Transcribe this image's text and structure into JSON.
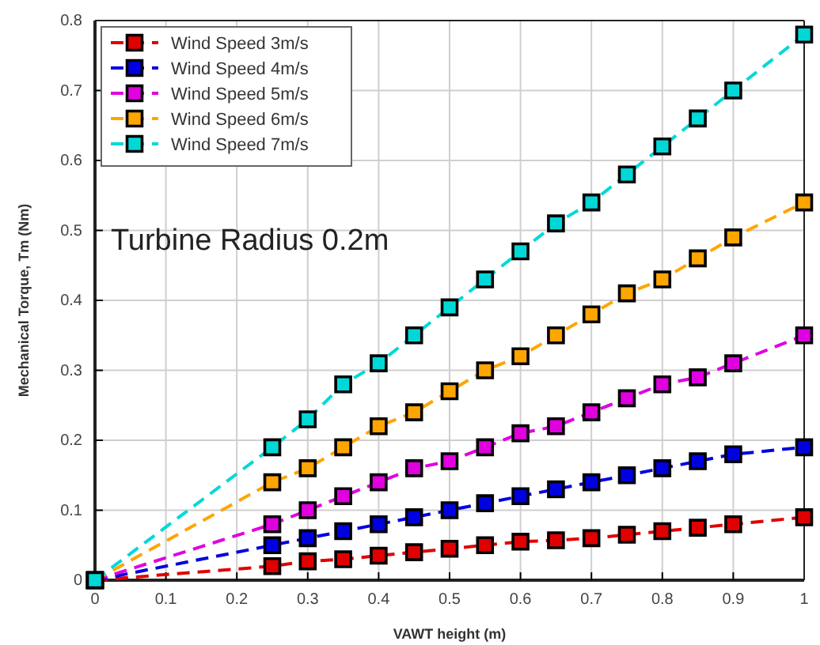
{
  "chart_data": {
    "type": "line",
    "xlabel": "VAWT height (m)",
    "ylabel": "Mechanical Torque, Tm (Nm)",
    "annotations": [
      "Turbine Radius 0.2m"
    ],
    "x": [
      0,
      0.25,
      0.3,
      0.35,
      0.4,
      0.45,
      0.5,
      0.55,
      0.6,
      0.65,
      0.7,
      0.75,
      0.8,
      0.85,
      0.9,
      1
    ],
    "series": [
      {
        "name": "Wind Speed 3m/s",
        "color": "#e00000",
        "values": [
          0,
          0.02,
          0.027,
          0.03,
          0.035,
          0.04,
          0.045,
          0.05,
          0.055,
          0.057,
          0.06,
          0.065,
          0.07,
          0.075,
          0.08,
          0.09
        ]
      },
      {
        "name": "Wind Speed 4m/s",
        "color": "#0000e0",
        "values": [
          0,
          0.05,
          0.06,
          0.07,
          0.08,
          0.09,
          0.1,
          0.11,
          0.12,
          0.13,
          0.14,
          0.15,
          0.16,
          0.17,
          0.18,
          0.19
        ]
      },
      {
        "name": "Wind Speed 5m/s",
        "color": "#e000e0",
        "values": [
          0,
          0.08,
          0.1,
          0.12,
          0.14,
          0.16,
          0.17,
          0.19,
          0.21,
          0.22,
          0.24,
          0.26,
          0.28,
          0.29,
          0.31,
          0.35
        ]
      },
      {
        "name": "Wind Speed 6m/s",
        "color": "#ffa500",
        "values": [
          0,
          0.14,
          0.16,
          0.19,
          0.22,
          0.24,
          0.27,
          0.3,
          0.32,
          0.35,
          0.38,
          0.41,
          0.43,
          0.46,
          0.49,
          0.54
        ]
      },
      {
        "name": "Wind Speed 7m/s",
        "color": "#00d8d8",
        "values": [
          0,
          0.19,
          0.23,
          0.28,
          0.31,
          0.35,
          0.39,
          0.43,
          0.47,
          0.51,
          0.54,
          0.58,
          0.62,
          0.66,
          0.7,
          0.78
        ]
      }
    ],
    "xlim": [
      0,
      1
    ],
    "xticks": [
      0,
      0.1,
      0.2,
      0.3,
      0.4,
      0.5,
      0.6,
      0.7,
      0.8,
      0.9,
      1
    ],
    "ylim": [
      0,
      0.8
    ],
    "yticks": [
      0,
      0.1,
      0.2,
      0.3,
      0.4,
      0.5,
      0.6,
      0.7,
      0.8
    ],
    "grid": true,
    "legend": "top left",
    "marker": "square",
    "line_style": "dashed"
  }
}
